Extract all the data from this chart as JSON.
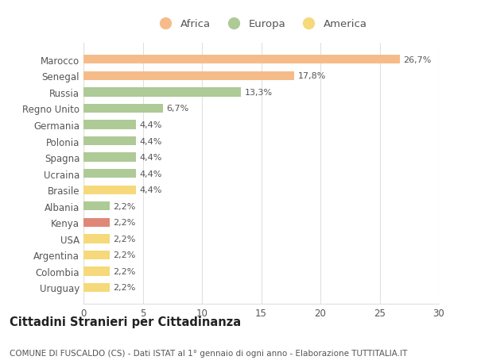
{
  "countries": [
    "Marocco",
    "Senegal",
    "Russia",
    "Regno Unito",
    "Germania",
    "Polonia",
    "Spagna",
    "Ucraina",
    "Brasile",
    "Albania",
    "Kenya",
    "USA",
    "Argentina",
    "Colombia",
    "Uruguay"
  ],
  "values": [
    26.7,
    17.8,
    13.3,
    6.7,
    4.4,
    4.4,
    4.4,
    4.4,
    4.4,
    2.2,
    2.2,
    2.2,
    2.2,
    2.2,
    2.2
  ],
  "labels": [
    "26,7%",
    "17,8%",
    "13,3%",
    "6,7%",
    "4,4%",
    "4,4%",
    "4,4%",
    "4,4%",
    "4,4%",
    "2,2%",
    "2,2%",
    "2,2%",
    "2,2%",
    "2,2%",
    "2,2%"
  ],
  "colors": [
    "#F5BC8A",
    "#F5BC8A",
    "#AECA96",
    "#AECA96",
    "#AECA96",
    "#AECA96",
    "#AECA96",
    "#AECA96",
    "#F5D97A",
    "#AECA96",
    "#E08878",
    "#F5D97A",
    "#F5D97A",
    "#F5D97A",
    "#F5D97A"
  ],
  "categories": [
    "Africa",
    "Europa",
    "America"
  ],
  "legend_colors": [
    "#F5BC8A",
    "#AECA96",
    "#F5D97A"
  ],
  "title": "Cittadini Stranieri per Cittadinanza",
  "subtitle": "COMUNE DI FUSCALDO (CS) - Dati ISTAT al 1° gennaio di ogni anno - Elaborazione TUTTITALIA.IT",
  "xlim": [
    0,
    30
  ],
  "xticks": [
    0,
    5,
    10,
    15,
    20,
    25,
    30
  ],
  "background_color": "#ffffff",
  "grid_color": "#e0e0e0",
  "bar_height": 0.55,
  "label_fontsize": 8,
  "title_fontsize": 10.5,
  "subtitle_fontsize": 7.5,
  "tick_fontsize": 8.5,
  "legend_fontsize": 9.5
}
